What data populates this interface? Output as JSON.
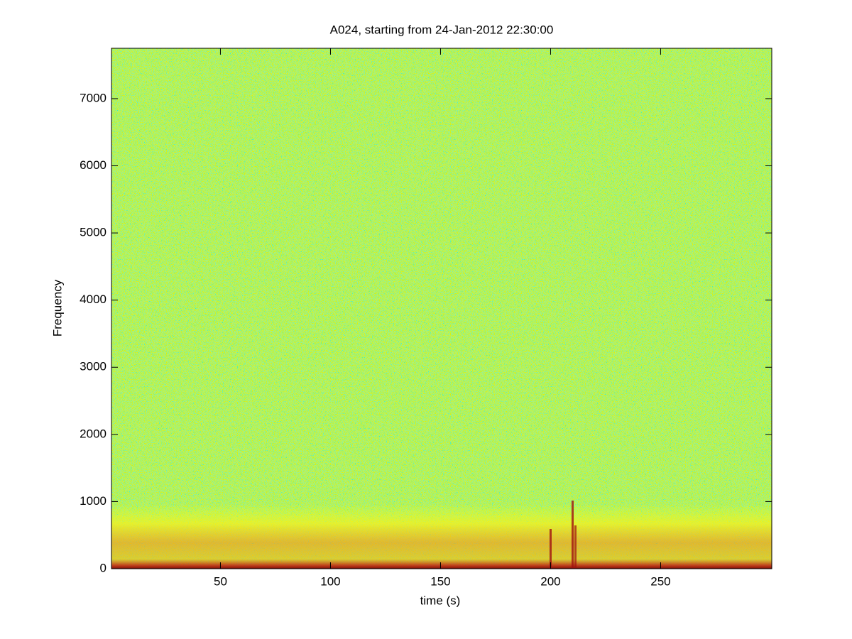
{
  "chart_data": {
    "type": "spectrogram",
    "title": "A024, starting from 24-Jan-2012 22:30:00",
    "x_label": "time (s)",
    "y_label": "Frequency",
    "xlim": [
      0.5,
      300.5
    ],
    "xticks": [
      50,
      100,
      150,
      200,
      250
    ],
    "ylim": [
      0,
      7750
    ],
    "yticks": [
      0,
      1000,
      2000,
      3000,
      4000,
      5000,
      6000,
      7000
    ],
    "grid": false
  }
}
